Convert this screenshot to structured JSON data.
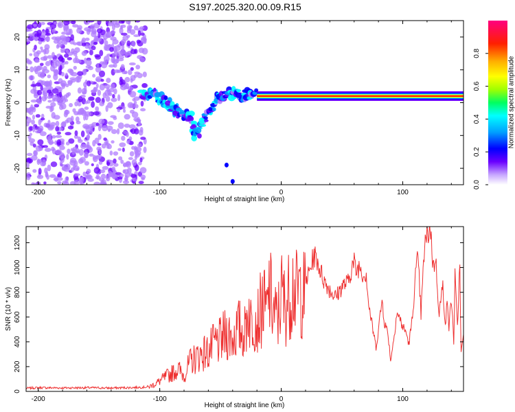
{
  "title": "S197.2025.320.00.09.R15",
  "chart_data": [
    {
      "type": "heatmap",
      "name": "spectrogram",
      "xlabel": "Height of straight line (km)",
      "ylabel": "Frequency (Hz)",
      "xlim": [
        -210,
        150
      ],
      "ylim": [
        -25,
        25
      ],
      "xticks": [
        -200,
        -100,
        0,
        100
      ],
      "xtick_labels": [
        "-200",
        "-100",
        "0",
        "100"
      ],
      "yticks": [
        20,
        10,
        0,
        -10,
        -20
      ],
      "ytick_labels": [
        "20",
        "10",
        "0",
        "-10",
        "-20"
      ],
      "colorbar": {
        "label": "Normalized spectral amplitude",
        "range": [
          0,
          1
        ],
        "ticks": [
          0.0,
          0.2,
          0.4,
          0.6,
          0.8
        ],
        "tick_labels": [
          "0.0",
          "0.2",
          "0.4",
          "0.6",
          "0.8"
        ],
        "colors": [
          "#ffffff",
          "#b07cff",
          "#6a00ff",
          "#0000ff",
          "#00a0ff",
          "#00ffff",
          "#00ff60",
          "#a0ff00",
          "#ffff00",
          "#ffb000",
          "#ff2000",
          "#ff0080"
        ]
      },
      "features": [
        {
          "desc": "broadband noise",
          "x_range": [
            -210,
            -112
          ],
          "f_range": [
            -25,
            25
          ],
          "amplitude": 0.15
        },
        {
          "desc": "meteor track head",
          "points": [
            [
              -115,
              3
            ],
            [
              -105,
              3
            ],
            [
              -95,
              0
            ],
            [
              -85,
              -3
            ],
            [
              -75,
              -4
            ],
            [
              -70,
              -10
            ],
            [
              -60,
              -2
            ],
            [
              -50,
              2
            ],
            [
              -40,
              3
            ],
            [
              -30,
              2
            ],
            [
              -20,
              3
            ]
          ],
          "amplitude": 0.4
        },
        {
          "desc": "steady carrier line",
          "x_range": [
            -20,
            150
          ],
          "frequency": 2,
          "amplitude": 0.95
        },
        {
          "desc": "isolated blobs",
          "points": [
            [
              -45,
              -19
            ],
            [
              -40,
              -24
            ]
          ],
          "amplitude": 0.25
        }
      ]
    },
    {
      "type": "line",
      "name": "snr",
      "xlabel": "Height of straight line (km)",
      "ylabel": "SNR (10 * v/v)",
      "xlim": [
        -210,
        150
      ],
      "ylim": [
        0,
        1330
      ],
      "xticks": [
        -200,
        -100,
        0,
        100
      ],
      "xtick_labels": [
        "-200",
        "-100",
        "0",
        "100"
      ],
      "yticks": [
        0,
        200,
        400,
        600,
        800,
        1000,
        1200
      ],
      "ytick_labels": [
        "0",
        "200",
        "400",
        "600",
        "800",
        "1000",
        "1200"
      ],
      "color": "#ee3030",
      "series": [
        {
          "name": "SNR",
          "x": [
            -210,
            -200,
            -180,
            -160,
            -140,
            -120,
            -110,
            -105,
            -100,
            -95,
            -90,
            -85,
            -80,
            -75,
            -70,
            -65,
            -60,
            -55,
            -50,
            -45,
            -40,
            -35,
            -30,
            -27,
            -25,
            -22,
            -20,
            -15,
            -12,
            -10,
            -6,
            -3,
            0,
            3,
            6,
            10,
            12,
            15,
            18,
            20,
            23,
            27,
            30,
            32,
            35,
            40,
            45,
            50,
            55,
            58,
            60,
            62,
            63,
            65,
            66,
            68,
            70,
            72,
            75,
            78,
            80,
            81,
            83,
            85,
            88,
            90,
            92,
            93,
            95,
            97,
            100,
            103,
            105,
            108,
            110,
            112,
            113,
            115,
            118,
            120,
            122,
            123,
            125,
            127,
            128,
            130,
            133,
            135,
            137,
            138,
            140,
            142,
            143,
            145,
            147,
            148,
            150
          ],
          "y": [
            25,
            30,
            28,
            30,
            27,
            32,
            35,
            60,
            90,
            130,
            160,
            200,
            140,
            260,
            300,
            340,
            350,
            420,
            440,
            520,
            480,
            560,
            520,
            760,
            600,
            700,
            620,
            780,
            680,
            900,
            700,
            620,
            880,
            760,
            840,
            970,
            840,
            920,
            850,
            880,
            960,
            1100,
            1050,
            980,
            900,
            820,
            760,
            850,
            880,
            1000,
            1040,
            960,
            1000,
            1010,
            980,
            940,
            960,
            700,
            520,
            360,
            500,
            580,
            740,
            560,
            460,
            250,
            380,
            460,
            640,
            600,
            520,
            470,
            380,
            590,
            900,
            1050,
            1000,
            620,
            1180,
            1240,
            1320,
            1300,
            1000,
            1080,
            920,
            640,
            850,
            560,
            720,
            500,
            760,
            400,
            920,
            500,
            1050,
            300,
            460
          ]
        }
      ]
    }
  ]
}
